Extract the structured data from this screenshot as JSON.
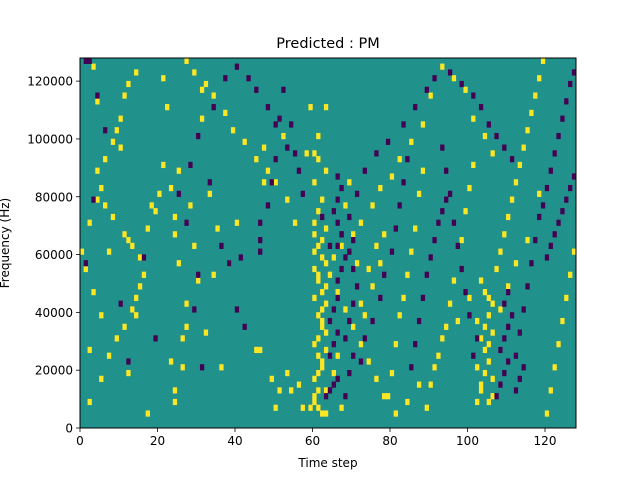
{
  "chart_data": {
    "type": "heatmap",
    "title": "Predicted : PM",
    "xlabel": "Time step",
    "ylabel": "Frequency (Hz)",
    "xlim": [
      0,
      128
    ],
    "ylim": [
      0,
      128000
    ],
    "x_ticks": [
      0,
      20,
      40,
      60,
      80,
      100,
      120
    ],
    "y_ticks": [
      0,
      20000,
      40000,
      60000,
      80000,
      100000,
      120000
    ],
    "n_time_steps": 128,
    "n_frequency_bins": 64,
    "frequency_bin_hz": 2000,
    "grid": false,
    "colormap": "viridis",
    "levels": {
      "background": {
        "value": 0.5,
        "color": "#21918c"
      },
      "high": {
        "value": 1,
        "color": "#fde725"
      },
      "low": {
        "value": 0,
        "color": "#440154"
      }
    },
    "high_cells": [
      [
        2,
        4
      ],
      [
        2,
        13
      ],
      [
        5,
        8
      ],
      [
        12,
        9
      ],
      [
        17,
        2
      ],
      [
        23,
        11
      ],
      [
        24,
        4
      ],
      [
        24,
        6
      ],
      [
        24,
        33
      ],
      [
        24,
        36
      ],
      [
        14,
        19
      ],
      [
        14,
        22
      ],
      [
        16,
        26
      ],
      [
        13,
        31
      ],
      [
        8,
        36
      ],
      [
        10,
        48
      ],
      [
        11,
        57
      ],
      [
        4,
        56
      ],
      [
        9,
        51
      ],
      [
        3,
        62
      ],
      [
        26,
        10
      ],
      [
        26,
        15
      ],
      [
        27,
        21
      ],
      [
        25,
        28
      ],
      [
        30,
        25
      ],
      [
        29,
        31
      ],
      [
        20,
        40
      ],
      [
        21,
        45
      ],
      [
        22,
        55
      ],
      [
        21,
        60
      ],
      [
        31,
        53
      ],
      [
        33,
        40
      ],
      [
        47,
        48
      ],
      [
        47,
        42
      ],
      [
        52,
        50
      ],
      [
        58,
        47
      ],
      [
        60,
        47
      ],
      [
        61,
        46
      ],
      [
        59,
        55
      ],
      [
        63,
        55
      ],
      [
        36,
        10
      ],
      [
        45,
        13
      ],
      [
        46,
        13
      ],
      [
        49,
        8
      ],
      [
        27,
        17
      ],
      [
        32,
        16
      ],
      [
        34,
        26
      ],
      [
        38,
        28
      ],
      [
        35,
        34
      ],
      [
        40,
        35
      ],
      [
        7,
        30
      ],
      [
        11,
        33
      ],
      [
        12,
        32
      ],
      [
        15,
        29
      ],
      [
        5,
        41
      ],
      [
        4,
        44
      ],
      [
        6,
        38
      ],
      [
        18,
        38
      ],
      [
        28,
        38
      ],
      [
        31,
        58
      ],
      [
        60,
        30
      ],
      [
        61,
        31
      ],
      [
        62,
        32
      ],
      [
        60,
        33
      ],
      [
        63,
        34
      ],
      [
        60,
        35
      ],
      [
        62,
        20
      ],
      [
        60,
        22
      ],
      [
        63,
        24
      ],
      [
        60,
        27
      ],
      [
        61,
        6
      ],
      [
        60,
        8
      ],
      [
        62,
        10
      ],
      [
        61,
        12
      ],
      [
        60,
        14
      ],
      [
        63,
        16
      ],
      [
        62,
        18
      ],
      [
        61,
        25
      ],
      [
        62,
        29
      ],
      [
        60,
        4
      ],
      [
        63,
        2
      ],
      [
        62,
        2
      ],
      [
        61,
        3
      ],
      [
        59,
        3
      ],
      [
        60,
        5
      ],
      [
        61,
        9
      ],
      [
        62,
        11
      ],
      [
        63,
        13
      ],
      [
        61,
        15
      ],
      [
        62,
        17
      ],
      [
        61,
        19
      ],
      [
        63,
        21
      ],
      [
        62,
        23
      ],
      [
        61,
        26
      ],
      [
        63,
        28
      ],
      [
        61,
        37
      ],
      [
        62,
        39
      ],
      [
        60,
        42
      ],
      [
        63,
        44
      ],
      [
        61,
        50
      ],
      [
        65,
        9
      ],
      [
        66,
        12
      ],
      [
        63,
        6
      ],
      [
        56,
        7
      ],
      [
        53,
        9
      ],
      [
        54,
        6
      ],
      [
        51,
        6
      ],
      [
        50,
        3
      ],
      [
        57,
        3
      ],
      [
        67,
        3
      ],
      [
        68,
        38
      ],
      [
        69,
        42
      ],
      [
        71,
        28
      ],
      [
        72,
        21
      ],
      [
        73,
        19
      ],
      [
        74,
        27
      ],
      [
        75,
        24
      ],
      [
        76,
        31
      ],
      [
        77,
        28
      ],
      [
        78,
        33
      ],
      [
        79,
        5
      ],
      [
        80,
        9
      ],
      [
        81,
        14
      ],
      [
        82,
        19
      ],
      [
        83,
        22
      ],
      [
        84,
        26
      ],
      [
        85,
        30
      ],
      [
        86,
        34
      ],
      [
        87,
        40
      ],
      [
        88,
        44
      ],
      [
        89,
        3
      ],
      [
        90,
        7
      ],
      [
        92,
        12
      ],
      [
        94,
        17
      ],
      [
        95,
        21
      ],
      [
        96,
        25
      ],
      [
        98,
        32
      ],
      [
        99,
        37
      ],
      [
        100,
        41
      ],
      [
        101,
        45
      ],
      [
        103,
        6
      ],
      [
        104,
        9
      ],
      [
        105,
        11
      ],
      [
        104,
        13
      ],
      [
        103,
        15
      ],
      [
        104,
        17
      ],
      [
        105,
        19
      ],
      [
        106,
        21
      ],
      [
        104,
        23
      ],
      [
        103,
        25
      ],
      [
        102,
        4
      ],
      [
        105,
        4
      ],
      [
        106,
        5
      ],
      [
        103,
        7
      ],
      [
        106,
        8
      ],
      [
        102,
        10
      ],
      [
        105,
        14
      ],
      [
        106,
        16
      ],
      [
        102,
        18
      ],
      [
        105,
        22
      ],
      [
        107,
        27
      ],
      [
        108,
        30
      ],
      [
        109,
        33
      ],
      [
        110,
        36
      ],
      [
        111,
        39
      ],
      [
        112,
        42
      ],
      [
        113,
        45
      ],
      [
        114,
        48
      ],
      [
        115,
        51
      ],
      [
        116,
        54
      ],
      [
        117,
        57
      ],
      [
        118,
        60
      ],
      [
        119,
        63
      ],
      [
        120,
        2
      ],
      [
        121,
        6
      ],
      [
        122,
        10
      ],
      [
        123,
        14
      ],
      [
        124,
        18
      ],
      [
        125,
        22
      ],
      [
        126,
        26
      ],
      [
        127,
        30
      ],
      [
        118,
        40
      ],
      [
        115,
        32
      ],
      [
        112,
        28
      ],
      [
        110,
        24
      ],
      [
        108,
        20
      ],
      [
        106,
        47
      ],
      [
        104,
        50
      ],
      [
        101,
        53
      ],
      [
        99,
        58
      ],
      [
        96,
        60
      ],
      [
        93,
        62
      ],
      [
        90,
        57
      ],
      [
        88,
        52
      ],
      [
        85,
        49
      ],
      [
        82,
        46
      ],
      [
        80,
        43
      ],
      [
        77,
        41
      ],
      [
        75,
        38
      ],
      [
        72,
        35
      ],
      [
        70,
        33
      ],
      [
        67,
        31
      ],
      [
        65,
        29
      ],
      [
        64,
        26
      ],
      [
        66,
        23
      ],
      [
        68,
        20
      ],
      [
        70,
        17
      ],
      [
        72,
        14
      ],
      [
        74,
        11
      ],
      [
        76,
        8
      ],
      [
        78,
        5
      ],
      [
        81,
        2
      ],
      [
        84,
        4
      ],
      [
        87,
        7
      ],
      [
        91,
        10
      ],
      [
        93,
        15
      ],
      [
        97,
        18
      ],
      [
        100,
        22
      ],
      [
        55,
        35
      ],
      [
        53,
        39
      ],
      [
        50,
        42
      ],
      [
        48,
        44
      ],
      [
        45,
        46
      ],
      [
        42,
        49
      ],
      [
        39,
        51
      ],
      [
        37,
        54
      ],
      [
        34,
        57
      ],
      [
        32,
        59
      ],
      [
        29,
        61
      ],
      [
        27,
        63
      ],
      [
        25,
        44
      ],
      [
        23,
        41
      ],
      [
        19,
        37
      ],
      [
        17,
        34
      ],
      [
        15,
        24
      ],
      [
        13,
        20
      ],
      [
        11,
        17
      ],
      [
        9,
        15
      ],
      [
        7,
        12
      ],
      [
        5,
        19
      ],
      [
        3,
        23
      ],
      [
        1,
        27
      ],
      [
        0,
        30
      ],
      [
        2,
        35
      ],
      [
        4,
        39
      ],
      [
        6,
        46
      ],
      [
        8,
        49
      ],
      [
        10,
        53
      ],
      [
        12,
        59
      ],
      [
        14,
        61
      ]
    ],
    "low_cells": [
      [
        2,
        63
      ],
      [
        1,
        63
      ],
      [
        12,
        11
      ],
      [
        10,
        21
      ],
      [
        4,
        57
      ],
      [
        3,
        39
      ],
      [
        1,
        28
      ],
      [
        6,
        51
      ],
      [
        16,
        29
      ],
      [
        19,
        15
      ],
      [
        31,
        10
      ],
      [
        30,
        26
      ],
      [
        29,
        20
      ],
      [
        27,
        35
      ],
      [
        33,
        42
      ],
      [
        36,
        31
      ],
      [
        38,
        28
      ],
      [
        40,
        20
      ],
      [
        41,
        29
      ],
      [
        42,
        17
      ],
      [
        46,
        30
      ],
      [
        46,
        32
      ],
      [
        46,
        35
      ],
      [
        48,
        38
      ],
      [
        49,
        42
      ],
      [
        50,
        46
      ],
      [
        51,
        53
      ],
      [
        52,
        58
      ],
      [
        54,
        52
      ],
      [
        55,
        47
      ],
      [
        63,
        5
      ],
      [
        64,
        6
      ],
      [
        65,
        7
      ],
      [
        66,
        8
      ],
      [
        64,
        12
      ],
      [
        65,
        14
      ],
      [
        66,
        16
      ],
      [
        64,
        18
      ],
      [
        65,
        20
      ],
      [
        66,
        22
      ],
      [
        66,
        25
      ],
      [
        67,
        27
      ],
      [
        68,
        29
      ],
      [
        66,
        31
      ],
      [
        67,
        33
      ],
      [
        66,
        35
      ],
      [
        65,
        37
      ],
      [
        66,
        39
      ],
      [
        67,
        41
      ],
      [
        66,
        43
      ],
      [
        68,
        5
      ],
      [
        69,
        9
      ],
      [
        70,
        12
      ],
      [
        68,
        15
      ],
      [
        69,
        18
      ],
      [
        70,
        21
      ],
      [
        71,
        24
      ],
      [
        70,
        27
      ],
      [
        69,
        30
      ],
      [
        70,
        32
      ],
      [
        72,
        11
      ],
      [
        73,
        15
      ],
      [
        75,
        18
      ],
      [
        77,
        22
      ],
      [
        78,
        26
      ],
      [
        80,
        30
      ],
      [
        81,
        34
      ],
      [
        82,
        38
      ],
      [
        83,
        42
      ],
      [
        84,
        46
      ],
      [
        85,
        10
      ],
      [
        86,
        14
      ],
      [
        87,
        18
      ],
      [
        88,
        22
      ],
      [
        89,
        26
      ],
      [
        90,
        29
      ],
      [
        91,
        32
      ],
      [
        92,
        35
      ],
      [
        93,
        37
      ],
      [
        94,
        39
      ],
      [
        101,
        12
      ],
      [
        102,
        15
      ],
      [
        100,
        19
      ],
      [
        99,
        23
      ],
      [
        98,
        27
      ],
      [
        97,
        31
      ],
      [
        96,
        35
      ],
      [
        95,
        40
      ],
      [
        94,
        44
      ],
      [
        93,
        48
      ],
      [
        107,
        5
      ],
      [
        108,
        7
      ],
      [
        109,
        9
      ],
      [
        110,
        11
      ],
      [
        108,
        13
      ],
      [
        109,
        15
      ],
      [
        110,
        17
      ],
      [
        111,
        19
      ],
      [
        109,
        21
      ],
      [
        110,
        23
      ],
      [
        112,
        6
      ],
      [
        113,
        8
      ],
      [
        114,
        10
      ],
      [
        112,
        12
      ],
      [
        113,
        16
      ],
      [
        114,
        20
      ],
      [
        115,
        24
      ],
      [
        116,
        28
      ],
      [
        117,
        32
      ],
      [
        118,
        36
      ],
      [
        119,
        38
      ],
      [
        120,
        41
      ],
      [
        121,
        44
      ],
      [
        122,
        47
      ],
      [
        123,
        50
      ],
      [
        124,
        53
      ],
      [
        125,
        56
      ],
      [
        126,
        59
      ],
      [
        127,
        61
      ],
      [
        120,
        29
      ],
      [
        121,
        31
      ],
      [
        122,
        33
      ],
      [
        123,
        35
      ],
      [
        124,
        37
      ],
      [
        125,
        39
      ],
      [
        126,
        41
      ],
      [
        127,
        43
      ],
      [
        111,
        46
      ],
      [
        109,
        48
      ],
      [
        107,
        50
      ],
      [
        105,
        52
      ],
      [
        103,
        55
      ],
      [
        101,
        57
      ],
      [
        98,
        59
      ],
      [
        95,
        61
      ],
      [
        91,
        60
      ],
      [
        89,
        58
      ],
      [
        86,
        55
      ],
      [
        83,
        52
      ],
      [
        79,
        49
      ],
      [
        76,
        47
      ],
      [
        73,
        44
      ],
      [
        71,
        40
      ],
      [
        69,
        36
      ],
      [
        67,
        33
      ],
      [
        64,
        31
      ],
      [
        62,
        36
      ],
      [
        57,
        40
      ],
      [
        56,
        44
      ],
      [
        53,
        48
      ],
      [
        50,
        52
      ],
      [
        48,
        55
      ],
      [
        45,
        58
      ],
      [
        43,
        60
      ],
      [
        40,
        62
      ],
      [
        37,
        60
      ],
      [
        34,
        55
      ],
      [
        30,
        50
      ],
      [
        28,
        45
      ],
      [
        25,
        40
      ]
    ]
  }
}
